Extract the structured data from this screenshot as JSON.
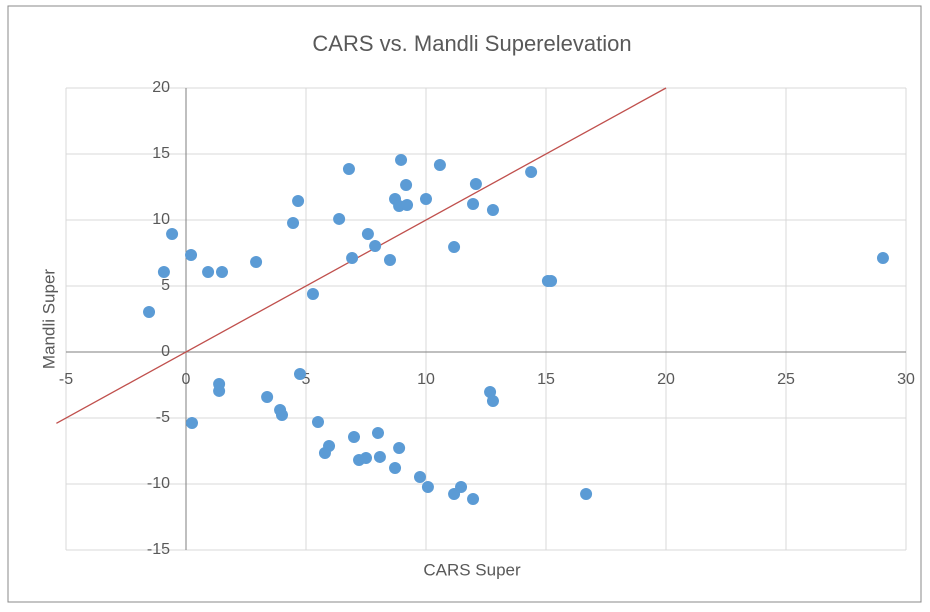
{
  "chart_data": {
    "type": "scatter",
    "title": "CARS vs. Mandli Superelevation",
    "x_label": "CARS Super",
    "y_label": "Mandli Super",
    "xlim": [
      -5,
      30
    ],
    "xticks": [
      -5,
      0,
      5,
      10,
      15,
      20,
      25,
      30
    ],
    "ylim": [
      -15,
      20
    ],
    "yticks": [
      -15,
      -10,
      -5,
      0,
      5,
      10,
      15,
      20
    ],
    "grid": true,
    "series": [
      {
        "name": "Mandli Super",
        "color": "#5b9bd5",
        "x": [
          -1.54,
          -0.92,
          -0.58,
          0.21,
          0.92,
          1.5,
          2.92,
          4.46,
          4.67,
          5.29,
          6.38,
          6.79,
          6.92,
          7.58,
          7.88,
          8.5,
          8.71,
          8.88,
          8.96,
          9.17,
          9.21,
          10.0,
          10.58,
          11.17,
          11.96,
          12.08,
          12.79,
          14.38,
          15.08,
          15.21,
          29.04,
          4.75,
          1.38,
          1.38,
          0.25,
          3.38,
          3.92,
          4.0,
          5.5,
          5.96,
          5.79,
          7.0,
          7.21,
          7.5,
          8.0,
          8.08,
          8.88,
          8.71,
          9.75,
          10.08,
          11.17,
          11.46,
          11.96,
          12.67,
          12.79,
          16.67
        ],
        "values": [
          3.03,
          6.06,
          8.94,
          7.35,
          6.06,
          6.06,
          6.82,
          9.77,
          11.44,
          4.39,
          10.08,
          13.86,
          7.12,
          8.94,
          8.03,
          6.97,
          11.59,
          11.06,
          14.55,
          12.65,
          11.14,
          11.59,
          14.17,
          7.95,
          11.21,
          12.73,
          10.76,
          13.64,
          5.38,
          5.38,
          7.12,
          -1.67,
          -2.42,
          -2.95,
          -5.38,
          -3.41,
          -4.39,
          -4.77,
          -5.3,
          -7.12,
          -7.65,
          -6.44,
          -8.18,
          -8.03,
          -6.14,
          -7.95,
          -7.27,
          -8.79,
          -9.47,
          -10.23,
          -10.76,
          -10.23,
          -11.14,
          -3.03,
          -3.71,
          -10.76
        ]
      }
    ],
    "reference_line": {
      "color": "#c0504d",
      "x": [
        -5.4,
        20
      ],
      "values": [
        -5.4,
        20
      ]
    }
  }
}
